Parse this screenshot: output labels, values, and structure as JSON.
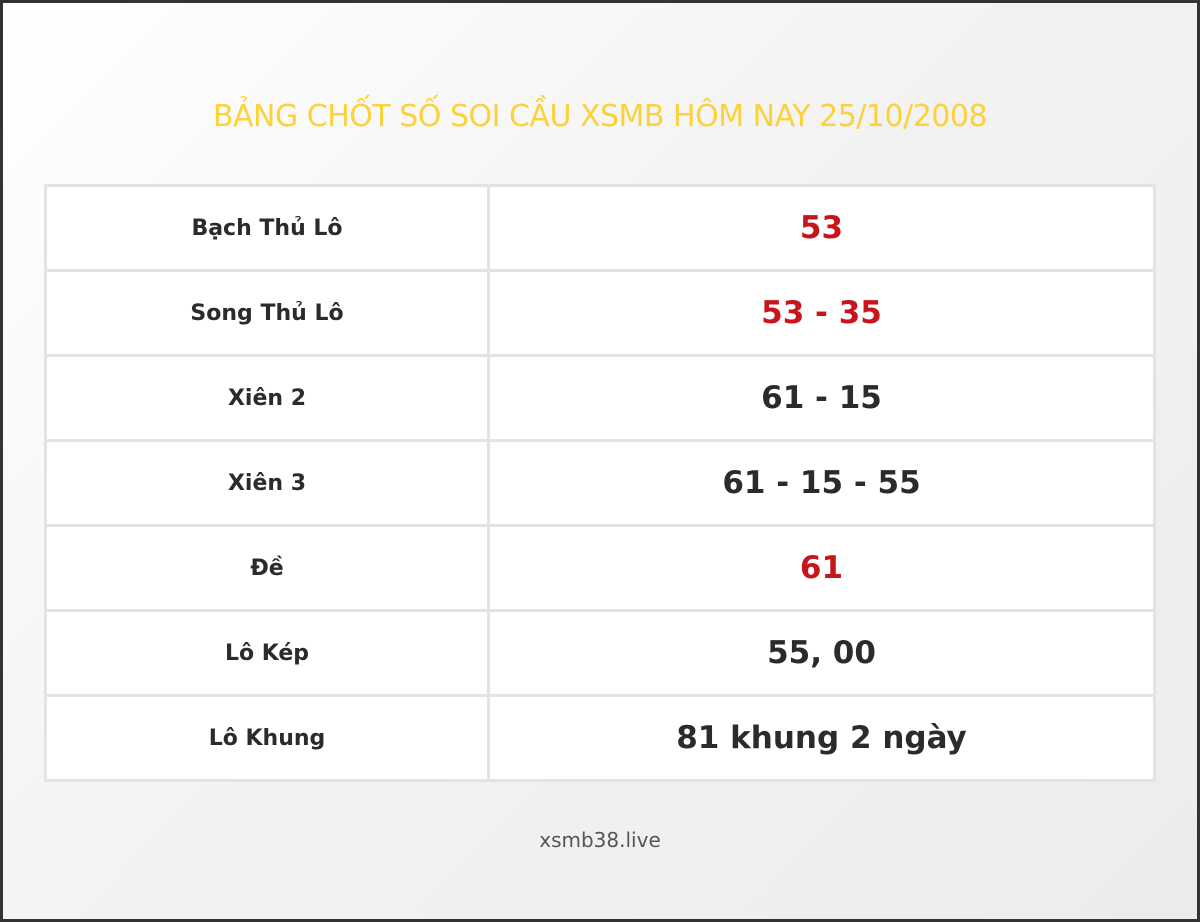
{
  "title": "BẢNG CHỐT SỐ SOI CẦU XSMB HÔM NAY 25/10/2008",
  "colors": {
    "title": "#fdd13a",
    "highlight": "#c8151b",
    "text": "#2b2b2b"
  },
  "rows": [
    {
      "label": "Bạch Thủ Lô",
      "value": "53",
      "highlight": true
    },
    {
      "label": "Song Thủ Lô",
      "value": "53 - 35",
      "highlight": true
    },
    {
      "label": "Xiên 2",
      "value": "61 - 15",
      "highlight": false
    },
    {
      "label": "Xiên 3",
      "value": "61 - 15 - 55",
      "highlight": false
    },
    {
      "label": "Đề",
      "value": "61",
      "highlight": true
    },
    {
      "label": "Lô Kép",
      "value": "55, 00",
      "highlight": false
    },
    {
      "label": "Lô Khung",
      "value": "81 khung 2 ngày",
      "highlight": false
    }
  ],
  "footer": "xsmb38.live"
}
